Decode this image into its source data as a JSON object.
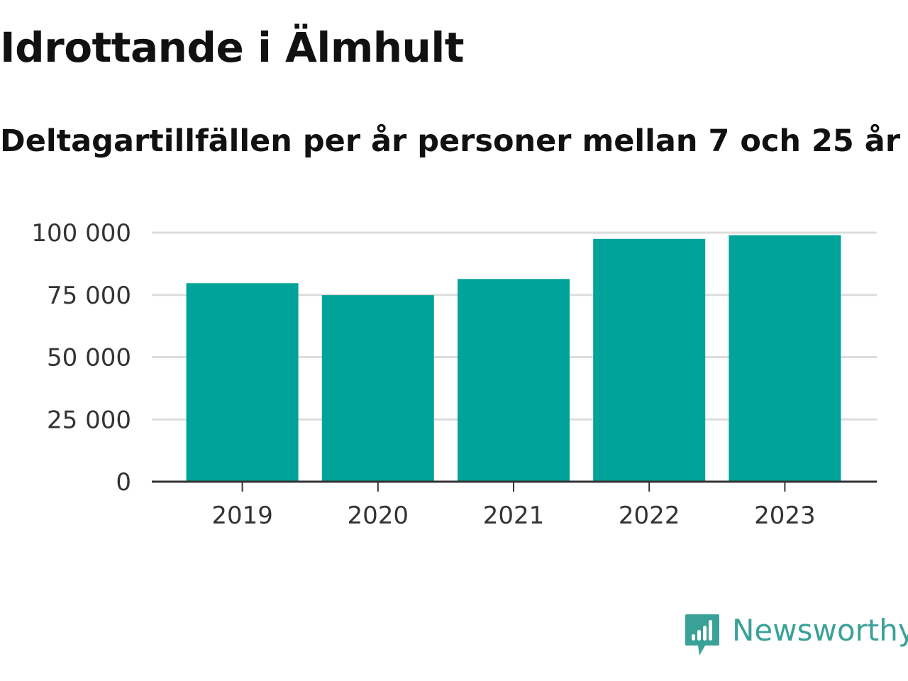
{
  "header": {
    "title": "Idrottande i Älmhult",
    "subtitle": "Deltagartillfällen per år personer mellan 7 och 25 år"
  },
  "brand": {
    "name": "Newsworthy",
    "icon": "newsworthy-logo-icon",
    "color": "#3aa198"
  },
  "chart_data": {
    "type": "bar",
    "categories": [
      "2019",
      "2020",
      "2021",
      "2022",
      "2023"
    ],
    "values": [
      79700,
      74900,
      81400,
      97500,
      99000
    ],
    "xlabel": "",
    "ylabel": "",
    "ylim": [
      0,
      100000
    ],
    "yticks": [
      0,
      25000,
      50000,
      75000,
      100000
    ],
    "ytick_labels": [
      "0",
      "25 000",
      "50 000",
      "75 000",
      "100 000"
    ],
    "grid": true,
    "bar_color": "#00a399",
    "grid_color": "#dddddd",
    "axis_color": "#333333"
  }
}
